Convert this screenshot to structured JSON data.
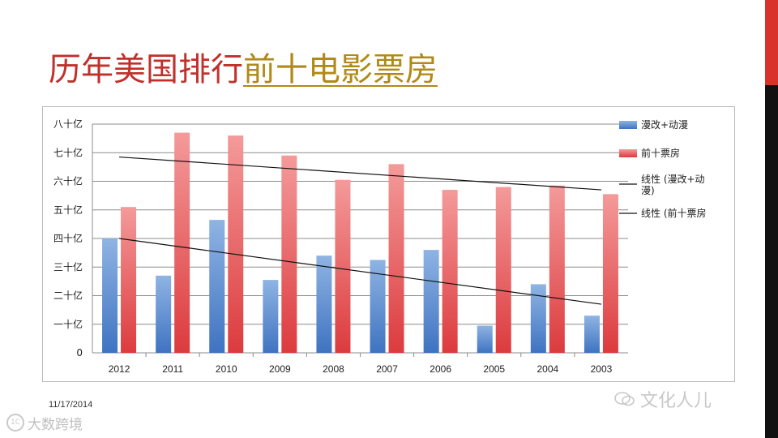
{
  "slide": {
    "title_part1": "历年美国排行",
    "title_part2": "前十电影票房",
    "date": "11/17/2014",
    "watermark_left": "大数跨境",
    "watermark_left_logo": "1C",
    "watermark_right": "文化人儿"
  },
  "colors": {
    "title_red": "#c2302c",
    "title_gold": "#b08a14",
    "series_blue": "#4f81bd",
    "series_red": "#e0494a",
    "accent_red": "#d9322d"
  },
  "chart_data": {
    "type": "bar",
    "categories": [
      "2012",
      "2011",
      "2010",
      "2009",
      "2008",
      "2007",
      "2006",
      "2005",
      "2004",
      "2003"
    ],
    "series": [
      {
        "name": "漫改+动漫",
        "values": [
          40,
          27,
          46.5,
          25.5,
          34,
          32.5,
          36,
          9.5,
          24,
          13
        ]
      },
      {
        "name": "前十票房",
        "values": [
          51,
          77,
          76,
          69,
          60.5,
          66,
          57,
          58,
          58.5,
          55.5
        ]
      }
    ],
    "trendlines": [
      {
        "name": "线性 (漫改+动漫)",
        "start": 40,
        "end": 17
      },
      {
        "name": "线性 (前十票房",
        "start": 68.5,
        "end": 57
      }
    ],
    "y_ticks": [
      "八十亿",
      "七十亿",
      "六十亿",
      "五十亿",
      "四十亿",
      "三十亿",
      "二十亿",
      "一十亿",
      "0"
    ],
    "ylim": [
      0,
      80
    ],
    "grid": true,
    "legend_position": "right"
  }
}
